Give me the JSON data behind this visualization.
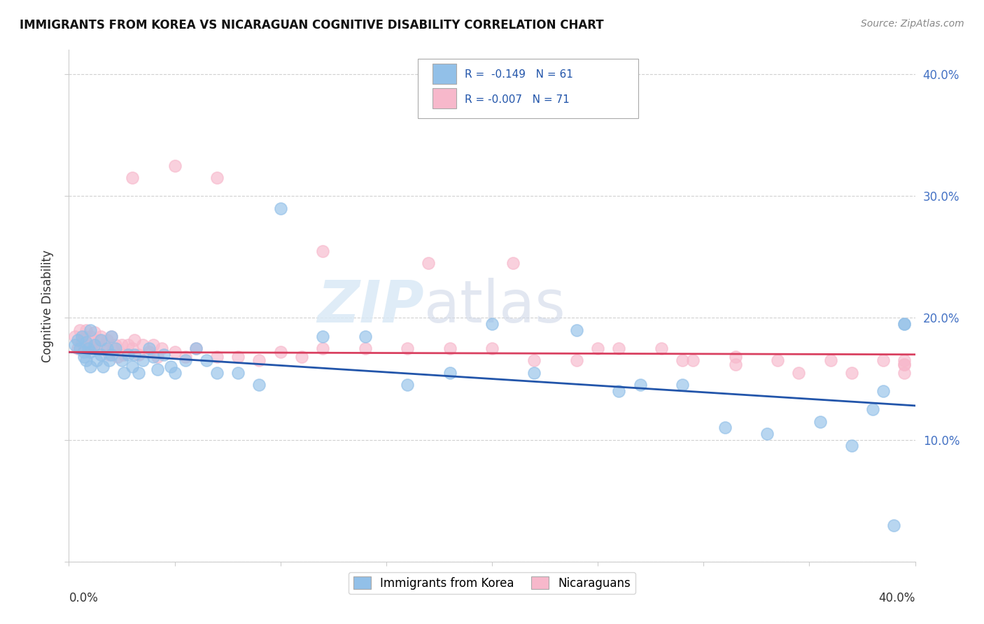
{
  "title": "IMMIGRANTS FROM KOREA VS NICARAGUAN COGNITIVE DISABILITY CORRELATION CHART",
  "source": "Source: ZipAtlas.com",
  "ylabel": "Cognitive Disability",
  "xlim": [
    0.0,
    0.4
  ],
  "ylim": [
    0.0,
    0.42
  ],
  "ytick_vals": [
    0.0,
    0.1,
    0.2,
    0.3,
    0.4
  ],
  "ytick_labels": [
    "",
    "10.0%",
    "20.0%",
    "30.0%",
    "40.0%"
  ],
  "legend_text1": "R =  -0.149   N = 61",
  "legend_text2": "R = -0.007   N = 71",
  "korea_color": "#92c0e8",
  "korea_edge_color": "#92c0e8",
  "nica_color": "#f7b8cb",
  "nica_edge_color": "#f7b8cb",
  "korea_line_color": "#2255aa",
  "nica_line_color": "#d94060",
  "watermark": "ZIPatlas",
  "korea_line_start": 0.172,
  "korea_line_end": 0.128,
  "nica_line_start": 0.172,
  "nica_line_end": 0.17,
  "korea_x": [
    0.003,
    0.004,
    0.005,
    0.006,
    0.007,
    0.007,
    0.008,
    0.008,
    0.009,
    0.01,
    0.01,
    0.01,
    0.012,
    0.013,
    0.015,
    0.015,
    0.016,
    0.018,
    0.019,
    0.02,
    0.02,
    0.022,
    0.025,
    0.026,
    0.028,
    0.03,
    0.031,
    0.033,
    0.035,
    0.038,
    0.04,
    0.042,
    0.045,
    0.048,
    0.05,
    0.055,
    0.06,
    0.065,
    0.07,
    0.08,
    0.09,
    0.1,
    0.12,
    0.14,
    0.16,
    0.18,
    0.2,
    0.22,
    0.24,
    0.26,
    0.27,
    0.29,
    0.31,
    0.33,
    0.355,
    0.37,
    0.38,
    0.385,
    0.39,
    0.395,
    0.395
  ],
  "korea_y": [
    0.178,
    0.182,
    0.175,
    0.185,
    0.172,
    0.168,
    0.18,
    0.165,
    0.175,
    0.19,
    0.172,
    0.16,
    0.178,
    0.165,
    0.182,
    0.17,
    0.16,
    0.175,
    0.165,
    0.185,
    0.17,
    0.175,
    0.165,
    0.155,
    0.17,
    0.16,
    0.17,
    0.155,
    0.165,
    0.175,
    0.168,
    0.158,
    0.17,
    0.16,
    0.155,
    0.165,
    0.175,
    0.165,
    0.155,
    0.155,
    0.145,
    0.29,
    0.185,
    0.185,
    0.145,
    0.155,
    0.195,
    0.155,
    0.19,
    0.14,
    0.145,
    0.145,
    0.11,
    0.105,
    0.115,
    0.095,
    0.125,
    0.14,
    0.03,
    0.195,
    0.195
  ],
  "nica_x": [
    0.003,
    0.004,
    0.005,
    0.006,
    0.007,
    0.007,
    0.008,
    0.009,
    0.01,
    0.01,
    0.011,
    0.012,
    0.013,
    0.014,
    0.015,
    0.016,
    0.017,
    0.018,
    0.019,
    0.02,
    0.021,
    0.022,
    0.023,
    0.025,
    0.026,
    0.028,
    0.03,
    0.031,
    0.033,
    0.035,
    0.038,
    0.04,
    0.042,
    0.044,
    0.05,
    0.055,
    0.06,
    0.07,
    0.08,
    0.09,
    0.1,
    0.11,
    0.12,
    0.14,
    0.16,
    0.18,
    0.2,
    0.22,
    0.24,
    0.26,
    0.28,
    0.295,
    0.315,
    0.335,
    0.36,
    0.03,
    0.05,
    0.07,
    0.12,
    0.17,
    0.21,
    0.25,
    0.29,
    0.315,
    0.345,
    0.37,
    0.385,
    0.395,
    0.395,
    0.395,
    0.395
  ],
  "nica_y": [
    0.185,
    0.175,
    0.19,
    0.18,
    0.185,
    0.175,
    0.19,
    0.178,
    0.185,
    0.175,
    0.18,
    0.188,
    0.175,
    0.182,
    0.185,
    0.175,
    0.178,
    0.182,
    0.17,
    0.185,
    0.175,
    0.178,
    0.168,
    0.178,
    0.17,
    0.178,
    0.175,
    0.182,
    0.17,
    0.178,
    0.172,
    0.178,
    0.168,
    0.175,
    0.172,
    0.168,
    0.175,
    0.168,
    0.168,
    0.165,
    0.172,
    0.168,
    0.175,
    0.175,
    0.175,
    0.175,
    0.175,
    0.165,
    0.165,
    0.175,
    0.175,
    0.165,
    0.168,
    0.165,
    0.165,
    0.315,
    0.325,
    0.315,
    0.255,
    0.245,
    0.245,
    0.175,
    0.165,
    0.162,
    0.155,
    0.155,
    0.165,
    0.165,
    0.162,
    0.155,
    0.162
  ]
}
